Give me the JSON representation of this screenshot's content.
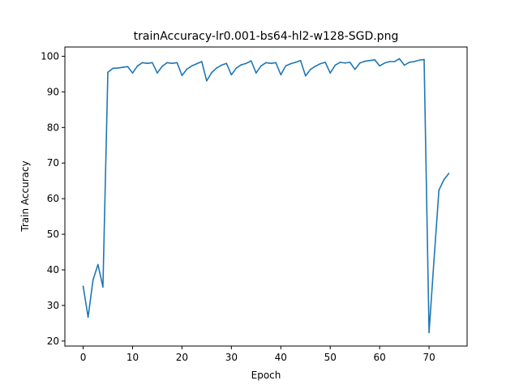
{
  "chart_data": {
    "type": "line",
    "title": "trainAccuracy-lr0.001-bs64-hl2-w128-SGD.png",
    "xlabel": "Epoch",
    "ylabel": "Train Accuracy",
    "xlim": [
      -3.7,
      77.7
    ],
    "ylim": [
      18.6,
      102.6
    ],
    "xticks": [
      0,
      10,
      20,
      30,
      40,
      50,
      60,
      70
    ],
    "yticks": [
      20,
      30,
      40,
      50,
      60,
      70,
      80,
      90,
      100
    ],
    "grid": false,
    "line_color": "#1f77b4",
    "series": [
      {
        "x": [
          0,
          1,
          2,
          3,
          4,
          5,
          6,
          7,
          8,
          9,
          10,
          11,
          12,
          13,
          14,
          15,
          16,
          17,
          18,
          19,
          20,
          21,
          22,
          23,
          24,
          25,
          26,
          27,
          28,
          29,
          30,
          31,
          32,
          33,
          34,
          35,
          36,
          37,
          38,
          39,
          40,
          41,
          42,
          43,
          44,
          45,
          46,
          47,
          48,
          49,
          50,
          51,
          52,
          53,
          54,
          55,
          56,
          57,
          58,
          59,
          60,
          61,
          62,
          63,
          64,
          65,
          66,
          67,
          68,
          69,
          70,
          71,
          72,
          73,
          74
        ],
        "values": [
          35.4,
          26.7,
          37.2,
          41.5,
          35.2,
          95.5,
          96.6,
          96.7,
          96.9,
          97.1,
          95.3,
          97.3,
          98.2,
          98.0,
          98.2,
          95.3,
          97.2,
          98.2,
          98.0,
          98.2,
          94.6,
          96.4,
          97.3,
          97.9,
          98.5,
          93.1,
          95.4,
          96.7,
          97.5,
          98.0,
          94.8,
          96.7,
          97.6,
          98.0,
          98.7,
          95.3,
          97.3,
          98.2,
          98.0,
          98.2,
          94.8,
          97.3,
          97.9,
          98.3,
          98.8,
          94.5,
          96.3,
          97.2,
          97.9,
          98.3,
          95.3,
          97.5,
          98.3,
          98.1,
          98.3,
          96.3,
          98.1,
          98.6,
          98.8,
          99.0,
          97.3,
          98.1,
          98.5,
          98.5,
          99.3,
          97.5,
          98.3,
          98.5,
          98.9,
          99.1,
          22.4,
          42.7,
          62.4,
          65.3,
          67.1
        ]
      }
    ]
  }
}
